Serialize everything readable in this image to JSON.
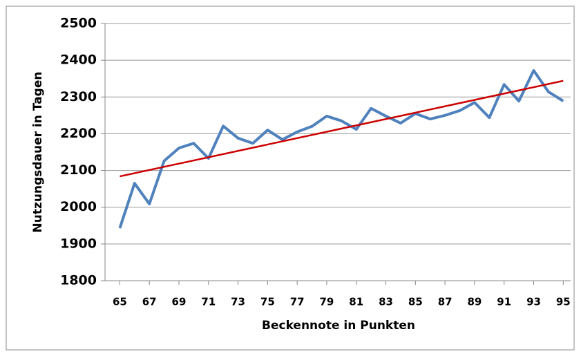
{
  "chart_data": {
    "type": "line",
    "xlabel": "Beckennote in Punkten",
    "ylabel": "Nutzungsdauer  in Tagen",
    "x": [
      65,
      66,
      67,
      68,
      69,
      70,
      71,
      72,
      73,
      74,
      75,
      76,
      77,
      78,
      79,
      80,
      81,
      82,
      83,
      84,
      85,
      86,
      87,
      88,
      89,
      90,
      91,
      92,
      93,
      94,
      95
    ],
    "series": [
      {
        "color": "#4f81bd",
        "values": [
          1943,
          2065,
          2009,
          2126,
          2161,
          2174,
          2133,
          2221,
          2188,
          2174,
          2210,
          2184,
          2205,
          2220,
          2248,
          2235,
          2212,
          2269,
          2248,
          2229,
          2255,
          2240,
          2250,
          2263,
          2285,
          2244,
          2334,
          2289,
          2372,
          2314,
          2289
        ]
      }
    ],
    "trend": {
      "color": "#cc0000",
      "x": [
        65,
        95
      ],
      "values": [
        2084,
        2344
      ]
    },
    "xlim": [
      64,
      95.5
    ],
    "xticks": [
      65,
      67,
      69,
      71,
      73,
      75,
      77,
      79,
      81,
      83,
      85,
      87,
      89,
      91,
      93,
      95
    ],
    "ylim": [
      1800,
      2500
    ],
    "yticks": [
      1800,
      1900,
      2000,
      2100,
      2200,
      2300,
      2400,
      2500
    ],
    "grid": true
  }
}
